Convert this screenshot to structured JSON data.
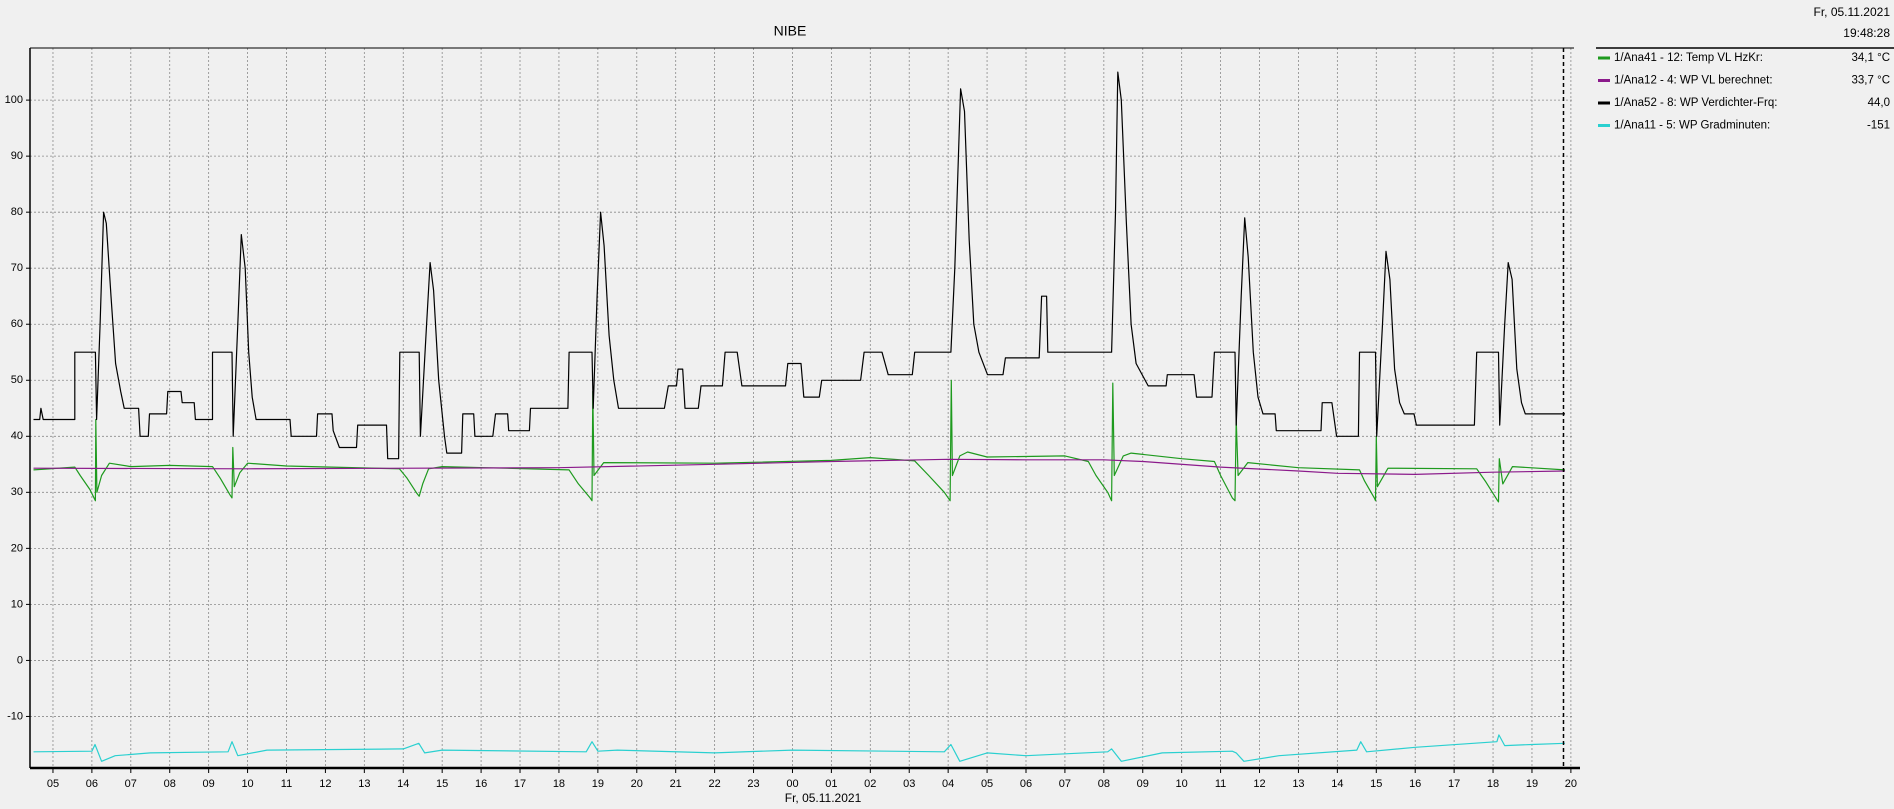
{
  "chart_data": {
    "type": "line",
    "title": "NIBE",
    "date_label": "Fr, 05.11.2021",
    "time_label": "19:48:28",
    "x_label": "Fr, 05.11.2021",
    "xlim": [
      4.41,
      44.08
    ],
    "ylim": [
      -19.2,
      109.3
    ],
    "yticks": [
      -10,
      0,
      10,
      20,
      30,
      40,
      50,
      60,
      70,
      80,
      90,
      100
    ],
    "xticks": [
      {
        "value": 5,
        "label": "05"
      },
      {
        "value": 6,
        "label": "06"
      },
      {
        "value": 7,
        "label": "07"
      },
      {
        "value": 8,
        "label": "08"
      },
      {
        "value": 9,
        "label": "09"
      },
      {
        "value": 10,
        "label": "10"
      },
      {
        "value": 11,
        "label": "11"
      },
      {
        "value": 12,
        "label": "12"
      },
      {
        "value": 13,
        "label": "13"
      },
      {
        "value": 14,
        "label": "14"
      },
      {
        "value": 15,
        "label": "15"
      },
      {
        "value": 16,
        "label": "16"
      },
      {
        "value": 17,
        "label": "17"
      },
      {
        "value": 18,
        "label": "18"
      },
      {
        "value": 19,
        "label": "19"
      },
      {
        "value": 20,
        "label": "20"
      },
      {
        "value": 21,
        "label": "21"
      },
      {
        "value": 22,
        "label": "22"
      },
      {
        "value": 23,
        "label": "23"
      },
      {
        "value": 24,
        "label": "00"
      },
      {
        "value": 25,
        "label": "01"
      },
      {
        "value": 26,
        "label": "02"
      },
      {
        "value": 27,
        "label": "03"
      },
      {
        "value": 28,
        "label": "04"
      },
      {
        "value": 29,
        "label": "05"
      },
      {
        "value": 30,
        "label": "06"
      },
      {
        "value": 31,
        "label": "07"
      },
      {
        "value": 32,
        "label": "08"
      },
      {
        "value": 33,
        "label": "09"
      },
      {
        "value": 34,
        "label": "10"
      },
      {
        "value": 35,
        "label": "11"
      },
      {
        "value": 36,
        "label": "12"
      },
      {
        "value": 37,
        "label": "13"
      },
      {
        "value": 38,
        "label": "14"
      },
      {
        "value": 39,
        "label": "15"
      },
      {
        "value": 40,
        "label": "16"
      },
      {
        "value": 41,
        "label": "17"
      },
      {
        "value": 42,
        "label": "18"
      },
      {
        "value": 43,
        "label": "19"
      },
      {
        "value": 44,
        "label": "20"
      }
    ],
    "grid": true,
    "cursor_x": 43.81,
    "series": [
      {
        "name": "1/Ana41 - 12: Temp VL HzKr:",
        "legend_value": "34,1 °C",
        "color": "#1e9a1e",
        "x": [
          4.5,
          5.56,
          5.7,
          5.95,
          6.09,
          6.1,
          6.13,
          6.25,
          6.45,
          7,
          8,
          9.1,
          9.3,
          9.55,
          9.6,
          9.62,
          9.66,
          9.8,
          10,
          11,
          13.9,
          14.1,
          14.35,
          14.41,
          14.5,
          14.65,
          15,
          18.26,
          18.5,
          18.8,
          18.85,
          18.87,
          18.9,
          19.15,
          22,
          25,
          26,
          27.14,
          27.5,
          27.9,
          28.05,
          28.08,
          28.11,
          28.3,
          28.5,
          29,
          31,
          31.6,
          31.8,
          32.1,
          32.2,
          32.23,
          32.27,
          32.5,
          32.7,
          34,
          34.84,
          35,
          35.3,
          35.37,
          35.4,
          35.45,
          35.7,
          37,
          38.57,
          38.7,
          38.95,
          38.98,
          39,
          39.03,
          39.3,
          41.58,
          41.8,
          42.1,
          42.14,
          42.16,
          42.25,
          42.5,
          43.85
        ],
        "values": [
          34,
          34.5,
          33,
          30.5,
          28.5,
          43,
          30,
          33,
          35.2,
          34.6,
          34.8,
          34.6,
          32.5,
          29.5,
          29,
          38,
          31,
          33.5,
          35.2,
          34.7,
          34.2,
          32.5,
          29.8,
          29.3,
          31.5,
          34.2,
          34.6,
          34,
          31.5,
          29,
          28.5,
          48,
          33,
          35.3,
          35.2,
          35.7,
          36.2,
          35.6,
          33,
          30,
          28.5,
          50,
          33,
          36.5,
          37.2,
          36.3,
          36.5,
          35.5,
          33,
          30,
          28.5,
          49.5,
          33,
          36.5,
          37,
          36,
          35.5,
          33,
          29,
          28.5,
          43,
          33,
          35.3,
          34.4,
          34,
          32,
          29,
          28.5,
          40,
          31,
          34.3,
          34.2,
          32,
          28.7,
          28.3,
          36,
          31.5,
          34.6,
          34
        ]
      },
      {
        "name": "1/Ana12 - 4: WP VL berechnet:",
        "legend_value": "33,7 °C",
        "color": "#8b1a8b",
        "x": [
          4.5,
          10,
          18,
          22,
          25,
          28,
          30,
          32,
          33,
          35,
          37,
          38,
          40,
          42,
          43.85
        ],
        "values": [
          34.3,
          34.2,
          34.4,
          35,
          35.5,
          35.9,
          35.8,
          35.8,
          35.5,
          34.5,
          33.8,
          33.4,
          33.2,
          33.6,
          33.8
        ]
      },
      {
        "name": "1/Ana52 - 8: WP Verdichter-Frq:",
        "legend_value": "44,0",
        "color": "#000000",
        "x": [
          4.5,
          4.66,
          4.69,
          4.75,
          5.56,
          5.56,
          6.09,
          6.12,
          6.21,
          6.3,
          6.37,
          6.49,
          6.61,
          6.74,
          6.83,
          7.2,
          7.24,
          7.45,
          7.48,
          7.92,
          7.95,
          8.29,
          8.32,
          8.63,
          8.66,
          8.76,
          9.1,
          9.1,
          9.6,
          9.63,
          9.75,
          9.84,
          9.94,
          10.03,
          10.12,
          10.22,
          11.09,
          11.12,
          11.77,
          11.8,
          12.17,
          12.2,
          12.36,
          12.8,
          12.83,
          13.57,
          13.6,
          13.88,
          13.91,
          14.41,
          14.44,
          14.6,
          14.69,
          14.78,
          14.91,
          15.06,
          15.12,
          15.5,
          15.53,
          15.81,
          15.84,
          16.3,
          16.37,
          16.68,
          16.71,
          17.24,
          17.27,
          18.23,
          18.26,
          18.85,
          18.88,
          18.98,
          19.07,
          19.16,
          19.29,
          19.41,
          19.53,
          20.71,
          20.81,
          21.02,
          21.06,
          21.18,
          21.24,
          21.58,
          21.65,
          22.2,
          22.27,
          22.58,
          22.7,
          23.82,
          23.88,
          24.22,
          24.29,
          24.69,
          24.75,
          25.75,
          25.84,
          26.3,
          26.46,
          27.08,
          27.14,
          28.07,
          28.17,
          28.32,
          28.42,
          28.54,
          28.66,
          28.79,
          29.01,
          29.41,
          29.47,
          30.34,
          30.4,
          30.53,
          30.56,
          32.2,
          32.3,
          32.36,
          32.45,
          32.58,
          32.7,
          32.83,
          33.14,
          33.6,
          33.63,
          34.32,
          34.38,
          34.78,
          34.84,
          35.37,
          35.4,
          35.53,
          35.62,
          35.71,
          35.84,
          35.96,
          36.09,
          36.4,
          36.43,
          37.58,
          37.61,
          37.86,
          37.98,
          38.54,
          38.57,
          38.98,
          39.01,
          39.16,
          39.25,
          39.35,
          39.47,
          39.6,
          39.72,
          39.97,
          40.03,
          41.52,
          41.58,
          42.14,
          42.17,
          42.3,
          42.39,
          42.49,
          42.61,
          42.73,
          42.83,
          43.85
        ],
        "values": [
          43,
          43,
          45,
          43,
          43,
          55,
          55,
          43,
          60,
          80,
          78,
          65,
          53,
          48,
          45,
          45,
          40,
          40,
          44,
          44,
          48,
          48,
          46,
          46,
          43,
          43,
          43,
          55,
          55,
          40,
          60,
          76,
          70,
          55,
          47,
          43,
          43,
          40,
          40,
          44,
          44,
          41,
          38,
          38,
          42,
          42,
          36,
          36,
          55,
          55,
          40,
          60,
          71,
          66,
          50,
          40,
          37,
          37,
          44,
          44,
          40,
          40,
          44,
          44,
          41,
          41,
          45,
          45,
          55,
          55,
          45,
          65,
          80,
          74,
          58,
          50,
          45,
          45,
          49,
          49,
          52,
          52,
          45,
          45,
          49,
          49,
          55,
          55,
          49,
          49,
          53,
          53,
          47,
          47,
          50,
          50,
          55,
          55,
          51,
          51,
          55,
          55,
          70,
          102,
          98,
          75,
          60,
          55,
          51,
          51,
          54,
          54,
          65,
          65,
          55,
          55,
          80,
          105,
          100,
          78,
          60,
          53,
          49,
          49,
          51,
          51,
          47,
          47,
          55,
          55,
          42,
          65,
          79,
          72,
          55,
          47,
          44,
          44,
          41,
          41,
          46,
          46,
          40,
          40,
          55,
          55,
          40,
          60,
          73,
          68,
          52,
          46,
          44,
          44,
          42,
          42,
          55,
          55,
          42,
          60,
          71,
          68,
          52,
          46,
          44,
          44
        ]
      },
      {
        "name": "1/Ana11 - 5: WP Gradminuten:",
        "legend_value": "-151",
        "color": "#2ad0d0",
        "x": [
          4.5,
          6,
          6.08,
          6.25,
          6.6,
          7.5,
          9.5,
          9.6,
          9.75,
          10.5,
          14,
          14.4,
          14.55,
          15,
          18.7,
          18.85,
          19,
          19.5,
          22,
          24,
          27.9,
          28.07,
          28.3,
          29,
          30,
          32.1,
          32.2,
          32.45,
          33.5,
          35.3,
          35.4,
          35.6,
          36.5,
          38.5,
          38.6,
          38.75,
          40,
          42.1,
          42.15,
          42.3,
          43,
          43.85
        ],
        "values": [
          -16.3,
          -16.2,
          -15,
          -18,
          -17,
          -16.5,
          -16.3,
          -14.5,
          -17,
          -16,
          -15.8,
          -14.8,
          -16.5,
          -16,
          -16.3,
          -14.5,
          -16.2,
          -16,
          -16.5,
          -16,
          -16.3,
          -15,
          -18,
          -16.5,
          -17,
          -16.3,
          -15.8,
          -18,
          -16.5,
          -16.2,
          -16.5,
          -18,
          -17,
          -16,
          -14.5,
          -16.3,
          -15.5,
          -14.5,
          -13.3,
          -15.2,
          -15,
          -14.8
        ]
      }
    ]
  }
}
